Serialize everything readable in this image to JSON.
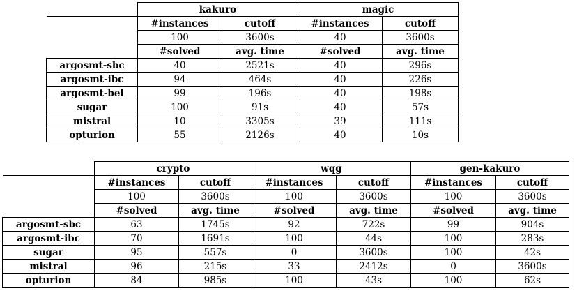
{
  "table1": {
    "groups": [
      {
        "name": "kakuro",
        "instances": "100",
        "cutoff": "3600s",
        "results": [
          {
            "solved": "40",
            "time": "2521s"
          },
          {
            "solved": "94",
            "time": "464s"
          },
          {
            "solved": "99",
            "time": "196s"
          },
          {
            "solved": "100",
            "time": "91s"
          },
          {
            "solved": "10",
            "time": "3305s"
          },
          {
            "solved": "55",
            "time": "2126s"
          }
        ]
      },
      {
        "name": "magic",
        "instances": "40",
        "cutoff": "3600s",
        "results": [
          {
            "solved": "40",
            "time": "296s"
          },
          {
            "solved": "40",
            "time": "226s"
          },
          {
            "solved": "40",
            "time": "198s"
          },
          {
            "solved": "40",
            "time": "57s"
          },
          {
            "solved": "39",
            "time": "111s"
          },
          {
            "solved": "40",
            "time": "10s"
          }
        ]
      }
    ],
    "rows": [
      "argosmt-sbc",
      "argosmt-ibc",
      "argosmt-bel",
      "sugar",
      "mistral",
      "opturion"
    ]
  },
  "table2": {
    "groups": [
      {
        "name": "crypto",
        "instances": "100",
        "cutoff": "3600s",
        "results": [
          {
            "solved": "63",
            "time": "1745s"
          },
          {
            "solved": "70",
            "time": "1691s"
          },
          {
            "solved": "95",
            "time": "557s"
          },
          {
            "solved": "96",
            "time": "215s"
          },
          {
            "solved": "84",
            "time": "985s"
          }
        ]
      },
      {
        "name": "wqg",
        "instances": "100",
        "cutoff": "3600s",
        "results": [
          {
            "solved": "92",
            "time": "722s"
          },
          {
            "solved": "100",
            "time": "44s"
          },
          {
            "solved": "0",
            "time": "3600s"
          },
          {
            "solved": "33",
            "time": "2412s"
          },
          {
            "solved": "100",
            "time": "43s"
          }
        ]
      },
      {
        "name": "gen-kakuro",
        "instances": "100",
        "cutoff": "3600s",
        "results": [
          {
            "solved": "99",
            "time": "904s"
          },
          {
            "solved": "100",
            "time": "283s"
          },
          {
            "solved": "100",
            "time": "42s"
          },
          {
            "solved": "0",
            "time": "3600s"
          },
          {
            "solved": "100",
            "time": "62s"
          }
        ]
      }
    ],
    "rows": [
      "argosmt-sbc",
      "argosmt-ibc",
      "sugar",
      "mistral",
      "opturion"
    ]
  },
  "labels": {
    "instances": "#instances",
    "cutoff": "cutoff",
    "solved": "#solved",
    "avg_time": "avg. time"
  }
}
